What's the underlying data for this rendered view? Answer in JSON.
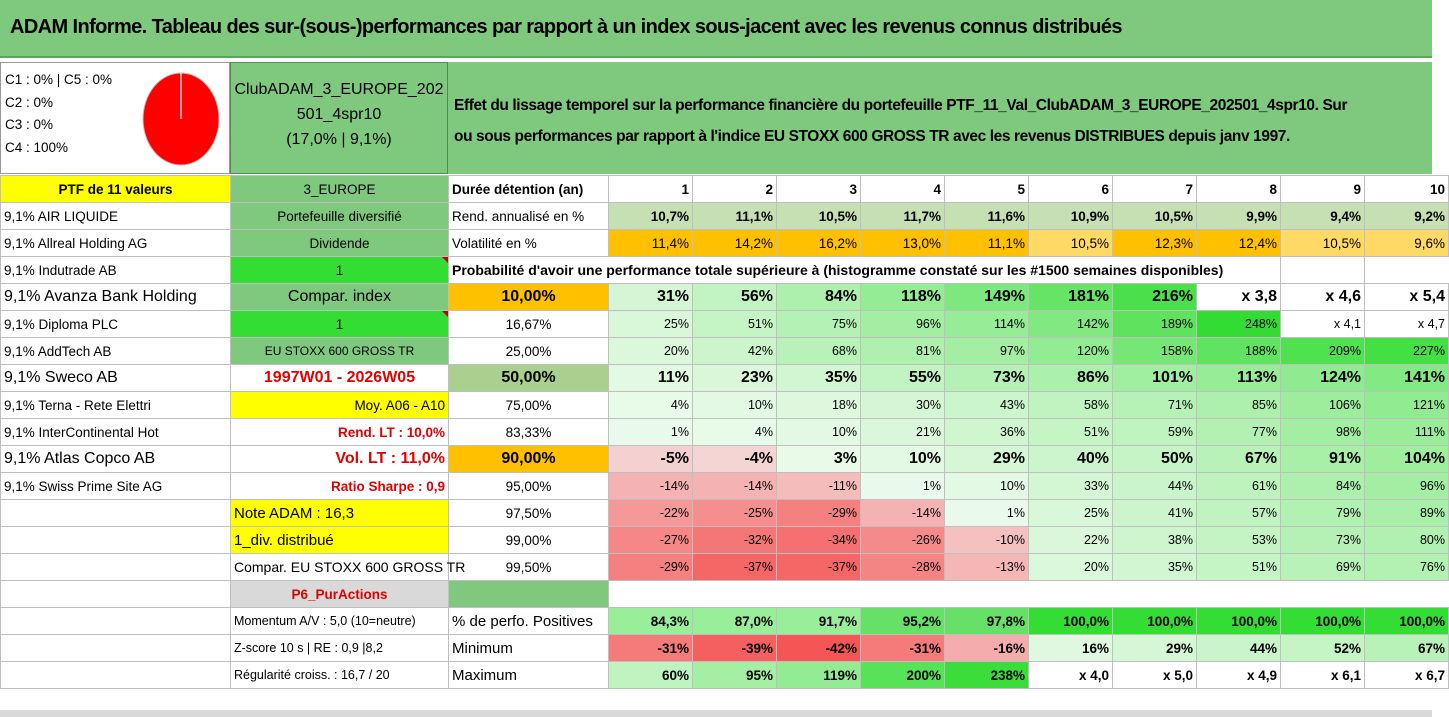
{
  "title": "ADAM Informe. Tableau des sur-(sous-)performances par rapport à un index sous-jacent avec les revenus connus distribués",
  "shares": [
    "C1 : 0% | C5 : 0%",
    "C2 : 0%",
    "C3 : 0%",
    "C4 : 100%"
  ],
  "club": {
    "line1": "ClubADAM_3_EUROPE_202",
    "line2": "501_4spr10",
    "line3": "(17,0% | 9,1%)"
  },
  "description": {
    "line1": "Effet du lissage temporel sur la performance financière du portefeuille PTF_11_Val_ClubADAM_3_EUROPE_202501_4spr10. Sur",
    "line2": "ou sous performances par rapport à l'indice EU STOXX 600 GROSS TR avec les revenus DISTRIBUES depuis janv 1997."
  },
  "colors": {
    "green": "#7fc97f",
    "light_green": "#33dd33",
    "orange": "#ffc000",
    "yellow": "#ffff00",
    "red_text": "#e00000"
  },
  "left": {
    "ptf": "PTF de 11 valeurs",
    "holdings": [
      "9,1% AIR LIQUIDE",
      "9,1% Allreal Holding AG",
      "9,1% Indutrade AB",
      "9,1% Avanza Bank Holding",
      "9,1% Diploma PLC",
      "9,1% AddTech AB",
      "9,1% Sweco AB",
      "9,1% Terna - Rete Elettri",
      "9,1% InterContinental Hot",
      "9,1% Atlas Copco AB",
      "9,1% Swiss Prime Site AG"
    ]
  },
  "mid": {
    "zone": "3_EUROPE",
    "diversified": "Portefeuille diversifié",
    "dividend": "Dividende",
    "one_a": "1",
    "compar_index": "Compar. index",
    "one_b": "1",
    "index_name": "EU STOXX 600 GROSS TR",
    "period": "1997W01 - 2026W05",
    "moy": "Moy. A06 - A10",
    "rend_lt": "Rend. LT : 10,0%",
    "vol_lt": "Vol. LT : 11,0%",
    "sharpe": "Ratio Sharpe : 0,9",
    "note": "Note ADAM : 16,3",
    "div": "1_div. distribué",
    "compar": "Compar. EU STOXX 600 GROSS TR",
    "p6": "P6_PurActions",
    "momentum": "Momentum A/V : 5,0 (10=neutre)",
    "zscore": "Z-score 10 s | RE : 0,9 |8,2",
    "regularite": "Régularité croiss. : 16,7 / 20"
  },
  "table": {
    "duration_label": "Durée détention (an)",
    "years": [
      "1",
      "2",
      "3",
      "4",
      "5",
      "6",
      "7",
      "8",
      "9",
      "10"
    ],
    "rend_label": "Rend. annualisé en %",
    "rend": [
      "10,7%",
      "11,1%",
      "10,5%",
      "11,7%",
      "11,6%",
      "10,9%",
      "10,5%",
      "9,9%",
      "9,4%",
      "9,2%"
    ],
    "vol_label": "Volatilité en %",
    "vol": [
      "11,4%",
      "14,2%",
      "16,2%",
      "13,0%",
      "11,1%",
      "10,5%",
      "12,3%",
      "12,4%",
      "10,5%",
      "9,6%"
    ],
    "prob_title": "Probabilité d'avoir une performance totale supérieure à (histogramme constaté sur les #1500 semaines disponibles)",
    "prob_rows": [
      {
        "p": "10,00%",
        "v": [
          "31%",
          "56%",
          "84%",
          "118%",
          "149%",
          "181%",
          "216%",
          "x 3,8",
          "x 4,6",
          "x 5,4"
        ]
      },
      {
        "p": "16,67%",
        "v": [
          "25%",
          "51%",
          "75%",
          "96%",
          "114%",
          "142%",
          "189%",
          "248%",
          "x 4,1",
          "x 4,7"
        ]
      },
      {
        "p": "25,00%",
        "v": [
          "20%",
          "42%",
          "68%",
          "81%",
          "97%",
          "120%",
          "158%",
          "188%",
          "209%",
          "227%"
        ]
      },
      {
        "p": "50,00%",
        "v": [
          "11%",
          "23%",
          "35%",
          "55%",
          "73%",
          "86%",
          "101%",
          "113%",
          "124%",
          "141%"
        ]
      },
      {
        "p": "75,00%",
        "v": [
          "4%",
          "10%",
          "18%",
          "30%",
          "43%",
          "58%",
          "71%",
          "85%",
          "106%",
          "121%"
        ]
      },
      {
        "p": "83,33%",
        "v": [
          "1%",
          "4%",
          "10%",
          "21%",
          "36%",
          "51%",
          "59%",
          "77%",
          "98%",
          "111%"
        ]
      },
      {
        "p": "90,00%",
        "v": [
          "-5%",
          "-4%",
          "3%",
          "10%",
          "29%",
          "40%",
          "50%",
          "67%",
          "91%",
          "104%"
        ]
      },
      {
        "p": "95,00%",
        "v": [
          "-14%",
          "-14%",
          "-11%",
          "1%",
          "10%",
          "33%",
          "44%",
          "61%",
          "84%",
          "96%"
        ]
      },
      {
        "p": "97,50%",
        "v": [
          "-22%",
          "-25%",
          "-29%",
          "-14%",
          "1%",
          "25%",
          "41%",
          "57%",
          "79%",
          "89%"
        ]
      },
      {
        "p": "99,00%",
        "v": [
          "-27%",
          "-32%",
          "-34%",
          "-26%",
          "-10%",
          "22%",
          "38%",
          "53%",
          "73%",
          "80%"
        ]
      },
      {
        "p": "99,50%",
        "v": [
          "-29%",
          "-37%",
          "-37%",
          "-28%",
          "-13%",
          "20%",
          "35%",
          "51%",
          "69%",
          "76%"
        ]
      }
    ],
    "pos_label": "% de perfo. Positives",
    "pos": [
      "84,3%",
      "87,0%",
      "91,7%",
      "95,2%",
      "97,8%",
      "100,0%",
      "100,0%",
      "100,0%",
      "100,0%",
      "100,0%"
    ],
    "min_label": "Minimum",
    "min": [
      "-31%",
      "-39%",
      "-42%",
      "-31%",
      "-16%",
      "16%",
      "29%",
      "44%",
      "52%",
      "67%"
    ],
    "max_label": "Maximum",
    "max": [
      "60%",
      "95%",
      "119%",
      "200%",
      "238%",
      "x 4,0",
      "x 5,0",
      "x 4,9",
      "x 6,1",
      "x 6,7"
    ]
  }
}
